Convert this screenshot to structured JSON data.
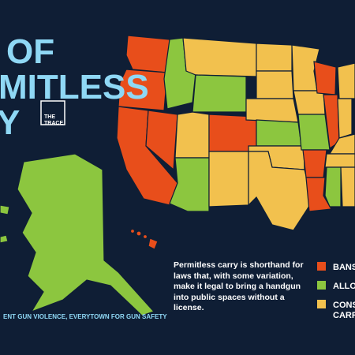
{
  "header": {
    "lines": [
      "OF",
      "MITLESS",
      "Y"
    ],
    "logo": [
      "THE",
      "TRACE"
    ]
  },
  "description": "Permitless carry is shorthand for laws that, with some variation, make it legal to bring a handgun into public spaces without a license.",
  "legend": [
    {
      "label": [
        "BANS"
      ],
      "color": "#e84e1b"
    },
    {
      "label": [
        "ALLOW"
      ],
      "color": "#8cc63f"
    },
    {
      "label": [
        "CONS",
        "CARRY"
      ],
      "color": "#f2c14e"
    }
  ],
  "source": "ENT GUN VIOLENCE, EVERYTOWN FOR GUN SAFETY"
}
